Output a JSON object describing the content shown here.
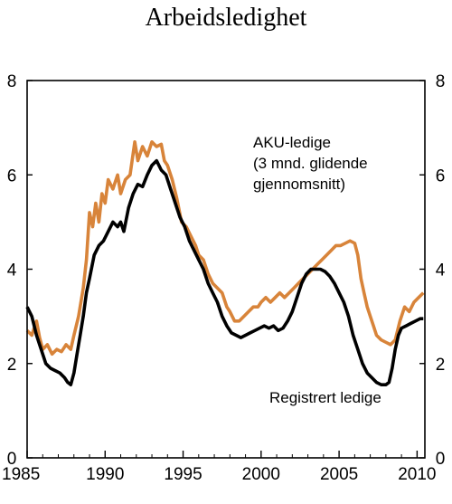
{
  "chart_data": {
    "type": "line",
    "title": "Arbeidsledighet",
    "xlabel": "",
    "ylabel": "",
    "xlim": [
      1985,
      2010.5
    ],
    "ylim": [
      0,
      8
    ],
    "x_ticks": [
      "1985",
      "1990",
      "1995",
      "2000",
      "2005",
      "2010"
    ],
    "y_ticks": [
      "0",
      "2",
      "4",
      "6",
      "8"
    ],
    "grid": false,
    "series": [
      {
        "name": "AKU-ledige (3 mnd. glidende gjennomsnitt)",
        "label_lines": [
          "AKU-ledige",
          "(3 mnd. glidende",
          "gjennomsnitt)"
        ],
        "color": "#d8843a",
        "points": [
          [
            1985.0,
            2.7
          ],
          [
            1985.3,
            2.6
          ],
          [
            1985.6,
            2.9
          ],
          [
            1985.8,
            2.55
          ],
          [
            1986.0,
            2.3
          ],
          [
            1986.3,
            2.4
          ],
          [
            1986.6,
            2.2
          ],
          [
            1986.9,
            2.3
          ],
          [
            1987.2,
            2.25
          ],
          [
            1987.5,
            2.4
          ],
          [
            1987.8,
            2.3
          ],
          [
            1988.0,
            2.6
          ],
          [
            1988.3,
            3.0
          ],
          [
            1988.6,
            3.6
          ],
          [
            1988.8,
            4.2
          ],
          [
            1989.0,
            5.2
          ],
          [
            1989.2,
            4.9
          ],
          [
            1989.4,
            5.4
          ],
          [
            1989.6,
            5.0
          ],
          [
            1989.8,
            5.6
          ],
          [
            1990.0,
            5.4
          ],
          [
            1990.2,
            5.9
          ],
          [
            1990.5,
            5.7
          ],
          [
            1990.8,
            6.0
          ],
          [
            1991.0,
            5.6
          ],
          [
            1991.3,
            5.9
          ],
          [
            1991.6,
            6.0
          ],
          [
            1991.9,
            6.7
          ],
          [
            1992.1,
            6.3
          ],
          [
            1992.4,
            6.6
          ],
          [
            1992.7,
            6.4
          ],
          [
            1993.0,
            6.7
          ],
          [
            1993.3,
            6.6
          ],
          [
            1993.6,
            6.65
          ],
          [
            1993.8,
            6.3
          ],
          [
            1994.0,
            6.2
          ],
          [
            1994.3,
            5.9
          ],
          [
            1994.6,
            5.5
          ],
          [
            1994.9,
            5.0
          ],
          [
            1995.2,
            4.9
          ],
          [
            1995.5,
            4.7
          ],
          [
            1995.8,
            4.5
          ],
          [
            1996.0,
            4.3
          ],
          [
            1996.3,
            4.2
          ],
          [
            1996.6,
            3.9
          ],
          [
            1996.9,
            3.7
          ],
          [
            1997.2,
            3.6
          ],
          [
            1997.5,
            3.5
          ],
          [
            1997.8,
            3.2
          ],
          [
            1998.0,
            3.1
          ],
          [
            1998.3,
            2.9
          ],
          [
            1998.6,
            2.9
          ],
          [
            1998.9,
            3.0
          ],
          [
            1999.2,
            3.1
          ],
          [
            1999.5,
            3.2
          ],
          [
            1999.8,
            3.2
          ],
          [
            2000.0,
            3.3
          ],
          [
            2000.3,
            3.4
          ],
          [
            2000.6,
            3.3
          ],
          [
            2000.9,
            3.4
          ],
          [
            2001.2,
            3.5
          ],
          [
            2001.5,
            3.4
          ],
          [
            2001.8,
            3.5
          ],
          [
            2002.1,
            3.6
          ],
          [
            2002.4,
            3.7
          ],
          [
            2002.7,
            3.8
          ],
          [
            2003.0,
            3.9
          ],
          [
            2003.3,
            4.0
          ],
          [
            2003.6,
            4.1
          ],
          [
            2003.9,
            4.2
          ],
          [
            2004.2,
            4.3
          ],
          [
            2004.5,
            4.4
          ],
          [
            2004.8,
            4.5
          ],
          [
            2005.1,
            4.5
          ],
          [
            2005.4,
            4.55
          ],
          [
            2005.7,
            4.6
          ],
          [
            2006.0,
            4.55
          ],
          [
            2006.2,
            4.3
          ],
          [
            2006.4,
            3.8
          ],
          [
            2006.6,
            3.5
          ],
          [
            2006.8,
            3.2
          ],
          [
            2007.0,
            3.0
          ],
          [
            2007.2,
            2.8
          ],
          [
            2007.4,
            2.6
          ],
          [
            2007.7,
            2.5
          ],
          [
            2008.0,
            2.45
          ],
          [
            2008.3,
            2.4
          ],
          [
            2008.6,
            2.5
          ],
          [
            2008.9,
            2.9
          ],
          [
            2009.2,
            3.2
          ],
          [
            2009.5,
            3.1
          ],
          [
            2009.8,
            3.3
          ],
          [
            2010.1,
            3.4
          ],
          [
            2010.4,
            3.5
          ]
        ]
      },
      {
        "name": "Registrert ledige",
        "label_lines": [
          "Registrert ledige"
        ],
        "color": "#000000",
        "points": [
          [
            1985.0,
            3.2
          ],
          [
            1985.3,
            3.0
          ],
          [
            1985.6,
            2.6
          ],
          [
            1985.9,
            2.3
          ],
          [
            1986.2,
            2.0
          ],
          [
            1986.5,
            1.9
          ],
          [
            1986.8,
            1.85
          ],
          [
            1987.1,
            1.8
          ],
          [
            1987.4,
            1.7
          ],
          [
            1987.6,
            1.6
          ],
          [
            1987.8,
            1.55
          ],
          [
            1988.0,
            1.8
          ],
          [
            1988.2,
            2.2
          ],
          [
            1988.4,
            2.6
          ],
          [
            1988.6,
            3.0
          ],
          [
            1988.8,
            3.5
          ],
          [
            1989.0,
            3.8
          ],
          [
            1989.3,
            4.3
          ],
          [
            1989.6,
            4.5
          ],
          [
            1989.9,
            4.6
          ],
          [
            1990.2,
            4.8
          ],
          [
            1990.5,
            5.0
          ],
          [
            1990.8,
            4.9
          ],
          [
            1991.0,
            5.0
          ],
          [
            1991.2,
            4.8
          ],
          [
            1991.5,
            5.3
          ],
          [
            1991.8,
            5.6
          ],
          [
            1992.1,
            5.8
          ],
          [
            1992.4,
            5.75
          ],
          [
            1992.7,
            6.0
          ],
          [
            1993.0,
            6.2
          ],
          [
            1993.3,
            6.3
          ],
          [
            1993.6,
            6.1
          ],
          [
            1993.9,
            6.0
          ],
          [
            1994.2,
            5.7
          ],
          [
            1994.5,
            5.4
          ],
          [
            1994.8,
            5.1
          ],
          [
            1995.1,
            4.9
          ],
          [
            1995.4,
            4.6
          ],
          [
            1995.7,
            4.4
          ],
          [
            1996.0,
            4.2
          ],
          [
            1996.3,
            4.0
          ],
          [
            1996.6,
            3.7
          ],
          [
            1996.9,
            3.5
          ],
          [
            1997.2,
            3.3
          ],
          [
            1997.5,
            3.0
          ],
          [
            1997.8,
            2.8
          ],
          [
            1998.1,
            2.65
          ],
          [
            1998.4,
            2.6
          ],
          [
            1998.7,
            2.55
          ],
          [
            1999.0,
            2.6
          ],
          [
            1999.3,
            2.65
          ],
          [
            1999.6,
            2.7
          ],
          [
            1999.9,
            2.75
          ],
          [
            2000.2,
            2.8
          ],
          [
            2000.5,
            2.75
          ],
          [
            2000.8,
            2.8
          ],
          [
            2001.1,
            2.7
          ],
          [
            2001.4,
            2.75
          ],
          [
            2001.7,
            2.9
          ],
          [
            2002.0,
            3.1
          ],
          [
            2002.3,
            3.4
          ],
          [
            2002.6,
            3.7
          ],
          [
            2002.9,
            3.9
          ],
          [
            2003.2,
            4.0
          ],
          [
            2003.5,
            4.0
          ],
          [
            2003.8,
            4.0
          ],
          [
            2004.1,
            3.95
          ],
          [
            2004.4,
            3.85
          ],
          [
            2004.7,
            3.7
          ],
          [
            2005.0,
            3.5
          ],
          [
            2005.3,
            3.3
          ],
          [
            2005.6,
            3.0
          ],
          [
            2005.9,
            2.6
          ],
          [
            2006.2,
            2.3
          ],
          [
            2006.5,
            2.0
          ],
          [
            2006.8,
            1.8
          ],
          [
            2007.1,
            1.7
          ],
          [
            2007.4,
            1.6
          ],
          [
            2007.7,
            1.55
          ],
          [
            2008.0,
            1.55
          ],
          [
            2008.2,
            1.6
          ],
          [
            2008.4,
            1.9
          ],
          [
            2008.6,
            2.3
          ],
          [
            2008.8,
            2.6
          ],
          [
            2009.0,
            2.75
          ],
          [
            2009.3,
            2.8
          ],
          [
            2009.6,
            2.85
          ],
          [
            2009.9,
            2.9
          ],
          [
            2010.2,
            2.95
          ],
          [
            2010.4,
            2.95
          ]
        ]
      }
    ]
  }
}
